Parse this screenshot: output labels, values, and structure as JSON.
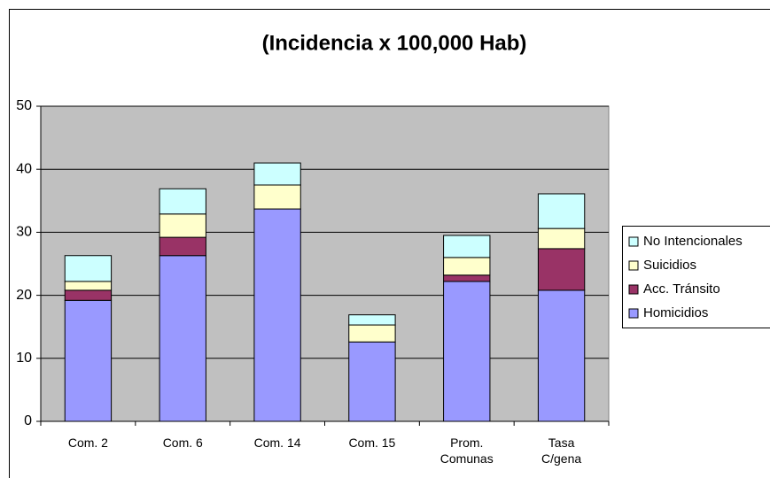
{
  "chart_data": {
    "type": "stacked_bar",
    "title": "(Incidencia x 100,000 Hab)",
    "categories": [
      "Com. 2",
      "Com. 6",
      "Com. 14",
      "Com. 15",
      "Prom. Comunas",
      "Tasa C/gena"
    ],
    "series": [
      {
        "name": "Homicidios",
        "color": "#9999ff",
        "values": [
          19.2,
          26.3,
          33.7,
          12.6,
          22.2,
          20.8
        ]
      },
      {
        "name": "Acc. Tránsito",
        "color": "#993366",
        "values": [
          1.6,
          2.9,
          0,
          0,
          1.0,
          6.6
        ]
      },
      {
        "name": "Suicidios",
        "color": "#ffffcc",
        "values": [
          1.4,
          3.7,
          3.8,
          2.7,
          2.8,
          3.2
        ]
      },
      {
        "name": "No Intencionales",
        "color": "#ccffff",
        "values": [
          4.1,
          4.0,
          3.5,
          1.6,
          3.5,
          5.5
        ]
      }
    ],
    "ylim": [
      0,
      50
    ],
    "yticks": [
      0,
      10,
      20,
      30,
      40,
      50
    ],
    "grid": true,
    "legend": "right"
  }
}
